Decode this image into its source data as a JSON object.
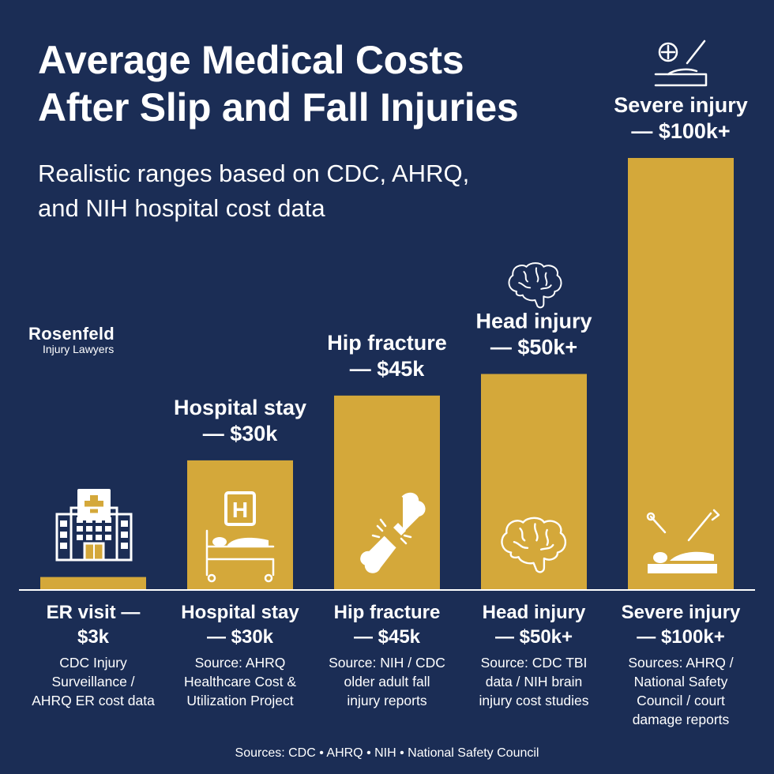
{
  "title_line1": "Average Medical Costs",
  "title_line2": "After Slip and Fall Injuries",
  "subtitle_line1": "Realistic ranges based on CDC, AHRQ,",
  "subtitle_line2": "and NIH hospital cost data",
  "logo": {
    "name": "Rosenfeld",
    "sub": "Injury Lawyers"
  },
  "footer": "Sources: CDC • AHRQ • NIH • National Safety Council",
  "colors": {
    "background": "#1b2d55",
    "bar": "#d4a83a",
    "text": "#ffffff"
  },
  "chart_data": {
    "type": "bar",
    "unit": "USD (thousands)",
    "categories": [
      "ER visit",
      "Hospital stay",
      "Hip fracture",
      "Head injury",
      "Severe injury"
    ],
    "values": [
      3,
      30,
      45,
      50,
      100
    ],
    "top_labels": [
      [
        "",
        ""
      ],
      [
        "Hospital stay",
        "— $30k"
      ],
      [
        "Hip fracture",
        "— $45k"
      ],
      [
        "Head injury",
        "— $50k+"
      ],
      [
        "Severe injury",
        "— $100k+"
      ]
    ],
    "bottom_labels": [
      [
        "ER visit —",
        "$3k"
      ],
      [
        "Hospital stay",
        "— $30k"
      ],
      [
        "Hip fracture",
        "— $45k"
      ],
      [
        "Head injury",
        "— $50k+"
      ],
      [
        "Severe injury",
        "— $100k+"
      ]
    ],
    "sources": [
      [
        "CDC Injury",
        "Surveillance /",
        "AHRQ ER cost data"
      ],
      [
        "Source: AHRQ",
        "Healthcare Cost &",
        "Utilization Project"
      ],
      [
        "Source: NIH / CDC",
        "older adult fall",
        "injury reports"
      ],
      [
        "Source: CDC TBI",
        "data / NIH brain",
        "injury cost studies"
      ],
      [
        "Sources: AHRQ /",
        "National Safety",
        "Council / court",
        "damage reports"
      ]
    ],
    "icons": [
      "hospital-building-icon",
      "hospital-bed-icon",
      "broken-bone-icon",
      "brain-icon",
      "surgery-icon"
    ]
  }
}
